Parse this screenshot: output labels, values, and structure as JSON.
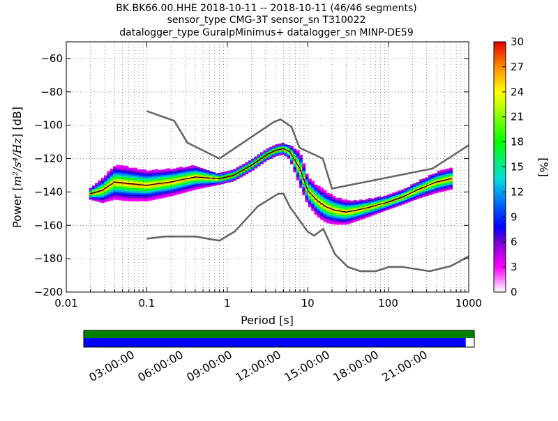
{
  "header": {
    "title_line1": "BK.BK66.00.HHE   2018-10-11 -- 2018-10-11  (46/46 segments)",
    "title_line2": "sensor_type CMG-3T sensor_sn T310022",
    "title_line3": "datalogger_type GuralpMinimus+ datalogger_sn MINP-DE59"
  },
  "chart_data": {
    "type": "heatmap",
    "xlabel": "Period [s]",
    "ylabel": "Power [m²/s⁴/Hz] [dB]",
    "ylabel_prefix": "Power [",
    "ylabel_units": "m²/s⁴/Hz",
    "ylabel_suffix": "] [dB]",
    "x_scale": "log",
    "xlim": [
      0.01,
      1000
    ],
    "ylim": [
      -200,
      -50
    ],
    "x_ticks": [
      0.01,
      0.1,
      1,
      10,
      100,
      1000
    ],
    "x_tick_labels": [
      "0.01",
      "0.1",
      "1",
      "10",
      "100",
      "1000"
    ],
    "y_ticks": [
      -200,
      -180,
      -160,
      -140,
      -120,
      -100,
      -80,
      -60
    ],
    "y_tick_labels": [
      "−200",
      "−180",
      "−160",
      "−140",
      "−120",
      "−100",
      "−80",
      "−60"
    ],
    "grid": true,
    "colorbar": {
      "label": "[%]",
      "min": 0,
      "max": 30,
      "ticks": [
        "0",
        "3",
        "6",
        "9",
        "12",
        "15",
        "18",
        "21",
        "24",
        "27",
        "30"
      ]
    },
    "series": [
      {
        "role": "new_high_noise_model",
        "color": "#666666",
        "x": [
          0.1,
          0.22,
          0.32,
          0.8,
          3.8,
          4.6,
          6.3,
          7.9,
          15.4,
          20,
          354,
          1000
        ],
        "y": [
          -91.5,
          -97.4,
          -110.5,
          -120,
          -98,
          -96.5,
          -101,
          -113.5,
          -120,
          -138,
          -126,
          -112
        ]
      },
      {
        "role": "new_low_noise_model",
        "color": "#666666",
        "x": [
          0.1,
          0.17,
          0.4,
          0.8,
          1.24,
          2.4,
          4.3,
          5,
          6,
          10,
          12,
          15.6,
          21.9,
          31.6,
          45,
          70,
          101,
          154,
          328,
          600,
          1000
        ],
        "y": [
          -168,
          -166.7,
          -166.7,
          -169.2,
          -163.7,
          -148.6,
          -141.1,
          -141.1,
          -149,
          -163.8,
          -166.2,
          -162.1,
          -177.5,
          -185,
          -187.5,
          -187.5,
          -185,
          -185,
          -187.5,
          -184.4,
          -178.6
        ]
      },
      {
        "role": "mode",
        "color": "#000000",
        "x": [
          0.02,
          0.028,
          0.04,
          0.06,
          0.1,
          0.2,
          0.4,
          0.8,
          1.2,
          2,
          3,
          4,
          5,
          6,
          8,
          10,
          13,
          17,
          22,
          30,
          40,
          60,
          100,
          150,
          250,
          400,
          600
        ],
        "y": [
          -141,
          -139,
          -134,
          -135,
          -136,
          -134,
          -131,
          -132,
          -130,
          -124,
          -118,
          -115,
          -114,
          -116,
          -126,
          -139,
          -145,
          -149,
          -151,
          -152,
          -151,
          -149,
          -146,
          -143,
          -138,
          -134,
          -132
        ]
      }
    ],
    "histogram_density": {
      "x": [
        0.02,
        0.028,
        0.04,
        0.06,
        0.1,
        0.2,
        0.4,
        0.8,
        1.2,
        2,
        3,
        4,
        5,
        6,
        8,
        10,
        13,
        17,
        22,
        30,
        40,
        60,
        100,
        150,
        250,
        400,
        600
      ],
      "spread_db": [
        3,
        7,
        10,
        10,
        9,
        8,
        7,
        3,
        3,
        3,
        3,
        3,
        3,
        4,
        10,
        8,
        9,
        9,
        8,
        7,
        6,
        5,
        4,
        4,
        5,
        6,
        6
      ]
    }
  },
  "timeline": {
    "labels": [
      "03:00:00",
      "06:00:00",
      "09:00:00",
      "12:00:00",
      "15:00:00",
      "18:00:00",
      "21:00:00"
    ],
    "upper_bar_fill": 1.0,
    "lower_bar_fill": 0.978,
    "upper_color": "#008000",
    "lower_color": "#0000ff"
  }
}
